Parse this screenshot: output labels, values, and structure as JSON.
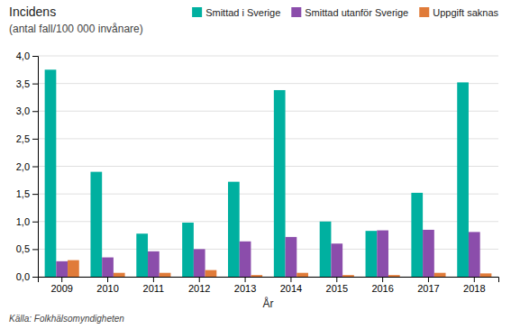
{
  "chart_data": {
    "type": "bar",
    "title": "Incidens",
    "subtitle": "(antal fall/100 000 invånare)",
    "xlabel": "År",
    "annotations": [
      "Källa: Folkhälsomyndigheten"
    ],
    "categories": [
      "2009",
      "2010",
      "2011",
      "2012",
      "2013",
      "2014",
      "2015",
      "2016",
      "2017",
      "2018"
    ],
    "series": [
      {
        "name": "Smittad i Sverige",
        "color": "#00B0A0",
        "values": [
          3.75,
          1.9,
          0.78,
          0.98,
          1.72,
          3.38,
          1.0,
          0.83,
          1.52,
          3.52
        ]
      },
      {
        "name": "Smittad utanför Sverige",
        "color": "#8B4DAB",
        "values": [
          0.28,
          0.35,
          0.46,
          0.5,
          0.64,
          0.72,
          0.6,
          0.84,
          0.85,
          0.81
        ]
      },
      {
        "name": "Uppgift saknas",
        "color": "#E07B39",
        "values": [
          0.3,
          0.07,
          0.07,
          0.12,
          0.03,
          0.07,
          0.03,
          0.03,
          0.07,
          0.06
        ]
      }
    ],
    "ylim": [
      0,
      4.0
    ],
    "yticks": [
      {
        "value": 0.0,
        "label": "0,0"
      },
      {
        "value": 0.5,
        "label": "0,5"
      },
      {
        "value": 1.0,
        "label": "1,0"
      },
      {
        "value": 1.5,
        "label": "1,5"
      },
      {
        "value": 2.0,
        "label": "2,0"
      },
      {
        "value": 2.5,
        "label": "2,5"
      },
      {
        "value": 3.0,
        "label": "3,0"
      },
      {
        "value": 3.5,
        "label": "3,5"
      },
      {
        "value": 4.0,
        "label": "4,0"
      }
    ],
    "grid": true,
    "legend": "upper right"
  }
}
